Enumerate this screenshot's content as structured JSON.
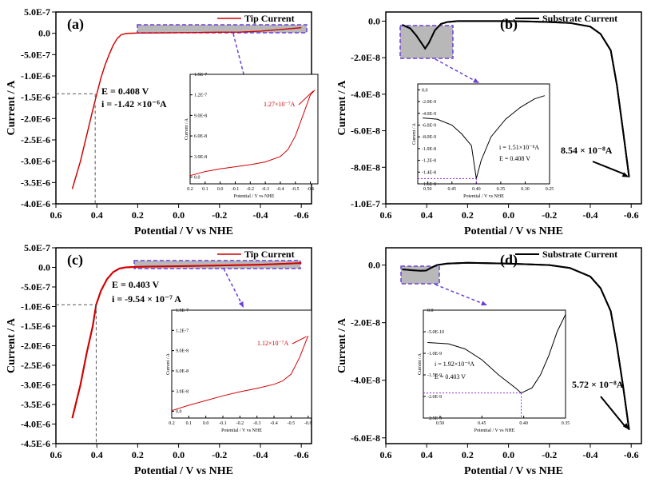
{
  "figure": {
    "panels": [
      {
        "id": "a",
        "label": "(a)",
        "legend": "Tip Current",
        "xlabel": "Potential / V vs NHE",
        "ylabel": "Current / A",
        "xticks": [
          "0.6",
          "0.4",
          "0.2",
          "0.0",
          "-0.2",
          "-0.4",
          "-0.6"
        ],
        "yticks": [
          "5.0E-7",
          "0.0",
          "-5.0E-7",
          "-1.0E-6",
          "-1.5E-6",
          "-2.0E-6",
          "-2.5E-6",
          "-3.0E-6",
          "-3.5E-6",
          "-4.0E-6"
        ],
        "annotation": [
          "E = 0.408 V",
          "i = -1.42 ×10⁻⁶A"
        ],
        "inset": {
          "xlabel": "Potential / V vs NHE",
          "ylabel": "Current / A",
          "xticks": [
            "0.2",
            "0.1",
            "0.0",
            "-0.1",
            "-0.2",
            "-0.3",
            "-0.4",
            "-0.5",
            "-0.6"
          ],
          "yticks": [
            "1.5E-7",
            "1.2E-7",
            "9.0E-8",
            "6.0E-8",
            "3.0E-8",
            "0.0"
          ],
          "annotation": "1.27×10⁻⁷A"
        }
      },
      {
        "id": "b",
        "label": "(b)",
        "legend": "Substrate Current",
        "xlabel": "Potential / V vs NHE",
        "ylabel": "Current / A",
        "xticks": [
          "0.6",
          "0.4",
          "0.2",
          "0.0",
          "-0.2",
          "-0.4",
          "-0.6"
        ],
        "yticks": [
          "0.0",
          "-2.0E-8",
          "-4.0E-8",
          "-6.0E-8",
          "-8.0E-8",
          "-1.0E-7"
        ],
        "annotation": [
          "8.54 × 10⁻⁸A"
        ],
        "inset": {
          "xlabel": "Potential / V vs NHE",
          "ylabel": "Current / A",
          "xticks": [
            "0.50",
            "0.45",
            "0.40",
            "0.35",
            "0.30",
            "0.25"
          ],
          "yticks": [
            "0.0",
            "-2.0E-9",
            "-4.0E-9",
            "-6.0E-9",
            "-8.0E-9",
            "-1.0E-8",
            "-1.2E-8",
            "-1.4E-8",
            "-1.6E-8"
          ],
          "annotation": [
            "i = 1.51×10⁻⁸A",
            "E = 0.408 V"
          ]
        }
      },
      {
        "id": "c",
        "label": "(c)",
        "legend": "Tip Current",
        "xlabel": "Potential / V vs NHE",
        "ylabel": "Current / A",
        "xticks": [
          "0.6",
          "0.4",
          "0.2",
          "0.0",
          "-0.2",
          "-0.4",
          "-0.6"
        ],
        "yticks": [
          "5.0E-7",
          "0.0",
          "-5.0E-7",
          "-1.0E-6",
          "-1.5E-6",
          "-2.0E-6",
          "-2.5E-6",
          "-3.0E-6",
          "-3.5E-6",
          "-4.0E-6",
          "-4.5E-6"
        ],
        "annotation": [
          "E = 0.403 V",
          "i = -9.54 × 10⁻⁷ A"
        ],
        "inset": {
          "xlabel": "Potential / V vs NHE",
          "ylabel": "Current / A",
          "xticks": [
            "0.2",
            "0.1",
            "0.0",
            "-0.1",
            "-0.2",
            "-0.3",
            "-0.4",
            "-0.5",
            "-0.6"
          ],
          "yticks": [
            "1.5E-7",
            "1.2E-7",
            "9.0E-8",
            "6.0E-8",
            "3.0E-8",
            "0.0"
          ],
          "annotation": "1.12×10⁻⁷A"
        }
      },
      {
        "id": "d",
        "label": "(d)",
        "legend": "Substrate Current",
        "xlabel": "Potential / V vs NHE",
        "ylabel": "Current / A",
        "xticks": [
          "0.6",
          "0.4",
          "0.2",
          "0.0",
          "-0.2",
          "-0.4",
          "-0.6"
        ],
        "yticks": [
          "0.0",
          "-2.0E-8",
          "-4.0E-8",
          "-6.0E-8"
        ],
        "annotation": [
          "5.72 × 10⁻⁸A"
        ],
        "inset": {
          "xlabel": "Potential / V vs NHE",
          "ylabel": "Current / A",
          "xticks": [
            "0.50",
            "0.45",
            "0.40",
            "0.35"
          ],
          "yticks": [
            "0.0",
            "-5.0E-10",
            "-1.0E-9",
            "-1.5E-9",
            "-2.0E-9",
            "-2.5E-9"
          ],
          "annotation": [
            "i = 1.92×10⁻⁹A",
            "E = 0.403 V"
          ]
        }
      }
    ]
  },
  "colors": {
    "tip_curve": "#d40000",
    "substrate_curve": "#000000",
    "highlight_fill": "#9a9a9a",
    "highlight_border": "#6a40d8",
    "guide_line": "#555555",
    "inset_marker": "#8a2be2"
  },
  "chart_data": [
    {
      "type": "line",
      "panel": "a",
      "title": "",
      "xlabel": "Potential / V vs NHE",
      "ylabel": "Current / A",
      "xlim": [
        0.6,
        -0.65
      ],
      "ylim": [
        -4e-06,
        5e-07
      ],
      "series": [
        {
          "name": "Tip Current",
          "x": [
            0.52,
            0.48,
            0.44,
            0.42,
            0.4,
            0.38,
            0.36,
            0.34,
            0.32,
            0.3,
            0.28,
            0.25,
            0.2,
            0.1,
            0.0,
            -0.1,
            -0.2,
            -0.3,
            -0.4,
            -0.5,
            -0.6
          ],
          "y": [
            -3.65e-06,
            -3e-06,
            -2.2e-06,
            -1.8e-06,
            -1.42e-06,
            -1.05e-06,
            -7.5e-07,
            -5e-07,
            -2.8e-07,
            -1.2e-07,
            -3e-08,
            0.0,
            5e-09,
            1e-08,
            1.5e-08,
            2e-08,
            2.5e-08,
            3e-08,
            5e-08,
            9e-08,
            1.3e-07
          ]
        }
      ],
      "annotations": [
        {
          "x": 0.408,
          "y": -1.42e-06,
          "text": "E = 0.408 V, i = -1.42e-6 A"
        }
      ],
      "inset": {
        "xlim": [
          0.2,
          -0.65
        ],
        "ylim": [
          -1e-08,
          1.5e-07
        ],
        "x": [
          0.2,
          0.1,
          0.0,
          -0.1,
          -0.2,
          -0.3,
          -0.4,
          -0.45,
          -0.5,
          -0.55,
          -0.6,
          -0.63
        ],
        "y": [
          2e-09,
          8e-09,
          1.2e-08,
          1.5e-08,
          1.8e-08,
          2.2e-08,
          3e-08,
          4e-08,
          6e-08,
          9e-08,
          1.2e-07,
          1.27e-07
        ]
      }
    },
    {
      "type": "line",
      "panel": "b",
      "xlabel": "Potential / V vs NHE",
      "ylabel": "Current / A",
      "xlim": [
        0.6,
        -0.65
      ],
      "ylim": [
        -1e-07,
        5e-09
      ],
      "series": [
        {
          "name": "Substrate Current",
          "x": [
            0.52,
            0.48,
            0.45,
            0.42,
            0.408,
            0.39,
            0.36,
            0.33,
            0.3,
            0.25,
            0.2,
            0.1,
            0.0,
            -0.1,
            -0.2,
            -0.3,
            -0.4,
            -0.45,
            -0.5,
            -0.53,
            -0.56,
            -0.59
          ],
          "y": [
            -2e-09,
            -4e-09,
            -8e-09,
            -1.3e-08,
            -1.5e-08,
            -1.2e-08,
            -5e-09,
            -1.5e-09,
            -5e-10,
            0.0,
            0.0,
            0.0,
            0.0,
            -2e-10,
            -5e-10,
            -1e-09,
            -3e-09,
            -7e-09,
            -1.6e-08,
            -3.5e-08,
            -6e-08,
            -8.54e-08
          ]
        }
      ],
      "annotations": [
        {
          "x": -0.59,
          "y": -8.54e-08,
          "text": "8.54e-8 A"
        }
      ],
      "inset": {
        "xlim": [
          0.52,
          0.25
        ],
        "ylim": [
          -1.6e-08,
          1e-09
        ],
        "x": [
          0.51,
          0.48,
          0.45,
          0.43,
          0.41,
          0.4,
          0.39,
          0.37,
          0.34,
          0.31,
          0.28,
          0.26
        ],
        "y": [
          -4.8e-09,
          -5e-09,
          -6e-09,
          -7.5e-09,
          -9.5e-09,
          -1.51e-08,
          -1.2e-08,
          -8e-09,
          -5e-09,
          -3e-09,
          -1.5e-09,
          -1e-09
        ]
      }
    },
    {
      "type": "line",
      "panel": "c",
      "xlabel": "Potential / V vs NHE",
      "ylabel": "Current / A",
      "xlim": [
        0.6,
        -0.65
      ],
      "ylim": [
        -4.5e-06,
        5e-07
      ],
      "series": [
        {
          "name": "Tip Current",
          "x": [
            0.52,
            0.48,
            0.45,
            0.42,
            0.403,
            0.38,
            0.35,
            0.32,
            0.29,
            0.26,
            0.22,
            0.15,
            0.0,
            -0.2,
            -0.4,
            -0.5,
            -0.6
          ],
          "y": [
            -3.85e-06,
            -3e-06,
            -2.2e-06,
            -1.5e-06,
            -9.54e-07,
            -6e-07,
            -3e-07,
            -1.2e-07,
            -3e-08,
            0.0,
            1e-08,
            2e-08,
            3e-08,
            5e-08,
            7e-08,
            9e-08,
            1.1e-07
          ]
        }
      ],
      "annotations": [
        {
          "x": 0.403,
          "y": -9.54e-07,
          "text": "E = 0.403 V, i = -9.54e-7 A"
        }
      ],
      "inset": {
        "xlim": [
          0.2,
          -0.62
        ],
        "ylim": [
          -1e-08,
          1.5e-07
        ],
        "x": [
          0.2,
          0.1,
          0.0,
          -0.1,
          -0.2,
          -0.3,
          -0.4,
          -0.45,
          -0.5,
          -0.55,
          -0.6
        ],
        "y": [
          1e-09,
          9e-09,
          1.6e-08,
          2.3e-08,
          2.9e-08,
          3.4e-08,
          4e-08,
          4.5e-08,
          5.5e-08,
          8e-08,
          1.12e-07
        ]
      }
    },
    {
      "type": "line",
      "panel": "d",
      "xlabel": "Potential / V vs NHE",
      "ylabel": "Current / A",
      "xlim": [
        0.6,
        -0.65
      ],
      "ylim": [
        -6.2e-08,
        6e-09
      ],
      "series": [
        {
          "name": "Substrate Current",
          "x": [
            0.52,
            0.47,
            0.43,
            0.403,
            0.38,
            0.35,
            0.3,
            0.2,
            0.0,
            -0.2,
            -0.3,
            -0.4,
            -0.45,
            -0.5,
            -0.53,
            -0.56,
            -0.59
          ],
          "y": [
            -1.5e-09,
            -1.8e-09,
            -2e-09,
            -1.9e-09,
            -1e-09,
            0.0,
            5e-10,
            8e-10,
            5e-10,
            0.0,
            -1e-09,
            -4e-09,
            -8e-09,
            -1.6e-08,
            -2.8e-08,
            -4.2e-08,
            -5.72e-08
          ]
        }
      ],
      "annotations": [
        {
          "x": -0.59,
          "y": -5.72e-08,
          "text": "5.72e-8 A"
        }
      ],
      "inset": {
        "xlim": [
          0.52,
          0.35
        ],
        "ylim": [
          -2.5e-09,
          0.0
        ],
        "x": [
          0.515,
          0.49,
          0.47,
          0.45,
          0.43,
          0.41,
          0.403,
          0.39,
          0.38,
          0.37,
          0.36,
          0.35
        ],
        "y": [
          -7.5e-10,
          -7.8e-10,
          -9e-10,
          -1.15e-09,
          -1.5e-09,
          -1.8e-09,
          -1.92e-09,
          -1.8e-09,
          -1.5e-09,
          -1.05e-09,
          -5e-10,
          -1e-10
        ]
      }
    }
  ]
}
